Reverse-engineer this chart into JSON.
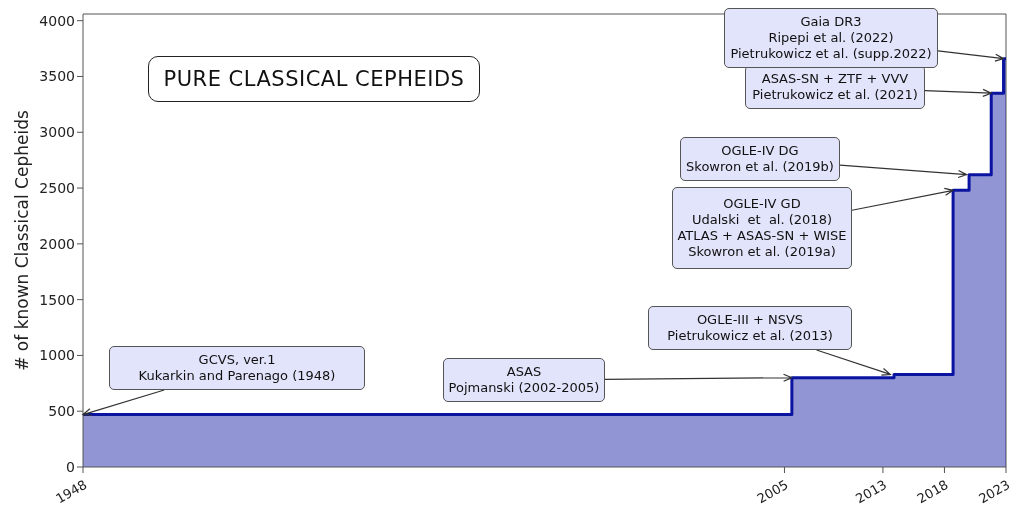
{
  "chart_data": {
    "type": "area",
    "title": "PURE CLASSICAL CEPHEIDS",
    "ylabel": "# of known Classical Cepheids",
    "x": [
      1948,
      2005.6,
      2005.6,
      2013.9,
      2013.9,
      2018.7,
      2018.7,
      2020,
      2020,
      2021.8,
      2021.8,
      2022.8,
      2022.8,
      2023
    ],
    "series": [
      {
        "color": "#0a14a0",
        "values": [
          470,
          470,
          800,
          800,
          830,
          830,
          2480,
          2480,
          2620,
          2620,
          3350,
          3350,
          3660,
          3660
        ]
      }
    ],
    "xlim": [
      1948,
      2023
    ],
    "xticks": [
      1948,
      2005,
      2013,
      2018,
      2023
    ],
    "ylim": [
      0,
      4060
    ],
    "yticks": [
      0,
      500,
      1000,
      1500,
      2000,
      2500,
      3000,
      3500,
      4000
    ],
    "grid": false,
    "legend": false,
    "marker": "none",
    "line_style": "solid",
    "annotations": [
      {
        "text": "GCVS, ver.1\nKukarkin and Parenago (1948)",
        "x": 1948,
        "y": 470
      },
      {
        "text": "ASAS\nPojmanski (2002-2005)",
        "x": 2005.6,
        "y": 800
      },
      {
        "text": "OGLE-III + NSVS\nPietrukowicz et al. (2013)",
        "x": 2013.6,
        "y": 830
      },
      {
        "text": "OGLE-IV GD\nUdalski  et  al. (2018)\nATLAS + ASAS-SN + WISE\nSkowron et al. (2019a)",
        "x": 2018.7,
        "y": 2480
      },
      {
        "text": "OGLE-IV DG\nSkowron et al. (2019b)",
        "x": 2019.8,
        "y": 2620
      },
      {
        "text": "ASAS-SN + ZTF + VVV\nPietrukowicz et al. (2021)",
        "x": 2021.8,
        "y": 3350
      },
      {
        "text": "Gaia DR3\nRipepi et al. (2022)\nPietrukowicz et al. (supp.2022)",
        "x": 2022.8,
        "y": 3660
      }
    ]
  }
}
